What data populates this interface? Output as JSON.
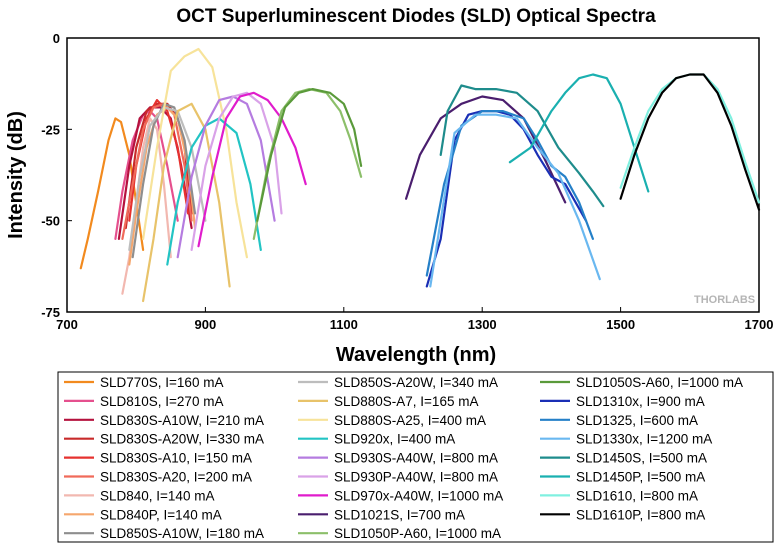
{
  "chart_data": {
    "type": "line",
    "title": "OCT Superluminescent Diodes (SLD) Optical Spectra",
    "xlabel": "Wavelength (nm)",
    "ylabel": "Intensity (dB)",
    "xlim": [
      700,
      1700
    ],
    "ylim": [
      -75,
      0
    ],
    "xticks": [
      "700",
      "900",
      "1100",
      "1300",
      "1500",
      "1700"
    ],
    "yticks": [
      "0",
      "-25",
      "-50",
      "-75"
    ],
    "grid": false,
    "legend_position": "bottom",
    "watermark": "THORLABS",
    "series": [
      {
        "name": "SLD770S, I=160 mA",
        "color": "#f28a1e",
        "x": [
          720,
          730,
          745,
          760,
          770,
          778,
          790,
          800,
          810
        ],
        "y": [
          -63,
          -55,
          -42,
          -28,
          -22,
          -23,
          -32,
          -45,
          -58
        ]
      },
      {
        "name": "SLD810S, I=270 mA",
        "color": "#e5508e",
        "x": [
          770,
          780,
          795,
          810,
          820,
          830,
          845,
          860
        ],
        "y": [
          -55,
          -42,
          -28,
          -21,
          -20,
          -22,
          -35,
          -50
        ]
      },
      {
        "name": "SLD830S-A10W, I=210 mA",
        "color": "#b5123e",
        "x": [
          775,
          790,
          805,
          820,
          835,
          850,
          865,
          880
        ],
        "y": [
          -55,
          -35,
          -22,
          -19,
          -19,
          -22,
          -35,
          -52
        ]
      },
      {
        "name": "SLD830S-A20W, I=330 mA",
        "color": "#c82a2a",
        "x": [
          785,
          800,
          815,
          830,
          845,
          860,
          870,
          880
        ],
        "y": [
          -52,
          -30,
          -20,
          -18,
          -18,
          -22,
          -30,
          -48
        ]
      },
      {
        "name": "SLD830S-A10, I=150 mA",
        "color": "#e6322f",
        "x": [
          790,
          800,
          815,
          830,
          845,
          860,
          875
        ],
        "y": [
          -50,
          -35,
          -22,
          -17,
          -20,
          -30,
          -48
        ]
      },
      {
        "name": "SLD830S-A20, I=200 mA",
        "color": "#f06a5a",
        "x": [
          780,
          795,
          810,
          825,
          840,
          855,
          870,
          880
        ],
        "y": [
          -55,
          -40,
          -25,
          -19,
          -18,
          -21,
          -35,
          -50
        ]
      },
      {
        "name": "SLD840, I=140 mA",
        "color": "#f2b8b0",
        "x": [
          780,
          790,
          800,
          810,
          820,
          830,
          840,
          850
        ],
        "y": [
          -70,
          -60,
          -45,
          -30,
          -22,
          -25,
          -40,
          -60
        ]
      },
      {
        "name": "SLD840P, I=140 mA",
        "color": "#f5a66d",
        "x": [
          790,
          800,
          815,
          830,
          845,
          860,
          875,
          885
        ],
        "y": [
          -62,
          -48,
          -30,
          -21,
          -19,
          -22,
          -35,
          -52
        ]
      },
      {
        "name": "SLD850S-A10W, I=180 mA",
        "color": "#8e8e8e",
        "x": [
          795,
          810,
          825,
          840,
          855,
          870,
          885
        ],
        "y": [
          -60,
          -40,
          -24,
          -18,
          -19,
          -28,
          -48
        ]
      },
      {
        "name": "SLD850S-A20W, I=340 mA",
        "color": "#bdbdbd",
        "x": [
          790,
          805,
          820,
          840,
          860,
          880,
          900
        ],
        "y": [
          -58,
          -38,
          -24,
          -19,
          -20,
          -30,
          -50
        ]
      },
      {
        "name": "SLD880S-A7, I=165 mA",
        "color": "#e8c36a",
        "x": [
          810,
          825,
          840,
          860,
          880,
          900,
          920,
          935
        ],
        "y": [
          -72,
          -55,
          -35,
          -20,
          -18,
          -25,
          -45,
          -68
        ]
      },
      {
        "name": "SLD880S-A25, I=400 mA",
        "color": "#f7e39a",
        "x": [
          810,
          830,
          850,
          870,
          890,
          910,
          930,
          945,
          960
        ],
        "y": [
          -55,
          -30,
          -9,
          -5,
          -3,
          -8,
          -25,
          -45,
          -60
        ]
      },
      {
        "name": "SLD920x, I=400 mA",
        "color": "#22c4c4",
        "x": [
          845,
          860,
          880,
          900,
          920,
          945,
          965,
          980
        ],
        "y": [
          -62,
          -45,
          -30,
          -24,
          -22,
          -26,
          -40,
          -58
        ]
      },
      {
        "name": "SLD930S-A40W, I=800 mA",
        "color": "#b57ce0",
        "x": [
          860,
          880,
          900,
          920,
          940,
          960,
          980,
          1000
        ],
        "y": [
          -60,
          -38,
          -24,
          -17,
          -16,
          -18,
          -28,
          -50
        ]
      },
      {
        "name": "SLD930P-A40W, I=800 mA",
        "color": "#d9a2e8",
        "x": [
          880,
          900,
          920,
          940,
          960,
          980,
          1000,
          1010
        ],
        "y": [
          -58,
          -35,
          -22,
          -16,
          -15,
          -18,
          -30,
          -48
        ]
      },
      {
        "name": "SLD970x-A40W, I=1000 mA",
        "color": "#e01ccc",
        "x": [
          890,
          910,
          930,
          950,
          970,
          990,
          1010,
          1030,
          1045
        ],
        "y": [
          -57,
          -38,
          -22,
          -16,
          -15,
          -17,
          -22,
          -30,
          -40
        ]
      },
      {
        "name": "SLD1021S, I=700 mA",
        "color": "#4a1e6e",
        "x": [
          1190,
          1210,
          1240,
          1270,
          1300,
          1330,
          1360,
          1390,
          1420
        ],
        "y": [
          -44,
          -32,
          -22,
          -18,
          -16,
          -17,
          -22,
          -33,
          -45
        ]
      },
      {
        "name": "SLD1050P-A60, I=1000 mA",
        "color": "#8cbf6a",
        "x": [
          970,
          990,
          1010,
          1030,
          1050,
          1075,
          1095,
          1110,
          1125
        ],
        "y": [
          -55,
          -35,
          -20,
          -15,
          -14,
          -15,
          -20,
          -28,
          -38
        ]
      },
      {
        "name": "SLD1050S-A60, I=1000 mA",
        "color": "#5a9a3a",
        "x": [
          975,
          995,
          1015,
          1035,
          1055,
          1080,
          1100,
          1115,
          1125
        ],
        "y": [
          -50,
          -32,
          -19,
          -15,
          -14,
          -15,
          -18,
          -25,
          -35
        ]
      },
      {
        "name": "SLD1310x, I=900 mA",
        "color": "#1a2fb5",
        "x": [
          1220,
          1240,
          1260,
          1280,
          1300,
          1320,
          1340,
          1360,
          1380,
          1400,
          1420,
          1450
        ],
        "y": [
          -68,
          -55,
          -28,
          -21,
          -20,
          -20,
          -21,
          -25,
          -32,
          -38,
          -40,
          -50
        ]
      },
      {
        "name": "SLD1325, I=600 mA",
        "color": "#2580c8",
        "x": [
          1220,
          1245,
          1270,
          1300,
          1330,
          1360,
          1380,
          1400,
          1420,
          1440,
          1460
        ],
        "y": [
          -65,
          -40,
          -24,
          -20,
          -20,
          -22,
          -28,
          -35,
          -38,
          -45,
          -55
        ]
      },
      {
        "name": "SLD1330x, I=1200 mA",
        "color": "#6ab8f0",
        "x": [
          1225,
          1240,
          1260,
          1290,
          1320,
          1350,
          1380,
          1410,
          1440,
          1470
        ],
        "y": [
          -68,
          -50,
          -26,
          -21,
          -21,
          -22,
          -30,
          -37,
          -50,
          -66
        ]
      },
      {
        "name": "SLD1450S, I=500 mA",
        "color": "#1e8c8c",
        "x": [
          1240,
          1250,
          1270,
          1290,
          1320,
          1350,
          1380,
          1410,
          1440,
          1460,
          1475
        ],
        "y": [
          -32,
          -20,
          -13,
          -14,
          -14,
          -15,
          -20,
          -30,
          -37,
          -42,
          -46
        ]
      },
      {
        "name": "SLD1450P, I=500 mA",
        "color": "#1ab0b0",
        "x": [
          1340,
          1370,
          1400,
          1420,
          1440,
          1460,
          1480,
          1500,
          1520,
          1540
        ],
        "y": [
          -34,
          -30,
          -20,
          -15,
          -11,
          -10,
          -11,
          -18,
          -30,
          -42
        ]
      },
      {
        "name": "SLD1610, I=800 mA",
        "color": "#80f0e0",
        "x": [
          1500,
          1520,
          1540,
          1560,
          1580,
          1600,
          1620,
          1640,
          1660,
          1680,
          1700
        ],
        "y": [
          -41,
          -30,
          -20,
          -14,
          -11,
          -10,
          -10,
          -14,
          -22,
          -34,
          -45
        ]
      },
      {
        "name": "SLD1610P, I=800 mA",
        "color": "#000000",
        "x": [
          1500,
          1520,
          1540,
          1560,
          1580,
          1600,
          1620,
          1640,
          1660,
          1680,
          1700
        ],
        "y": [
          -44,
          -32,
          -22,
          -15,
          -11,
          -10,
          -10,
          -15,
          -24,
          -36,
          -47
        ]
      }
    ]
  }
}
